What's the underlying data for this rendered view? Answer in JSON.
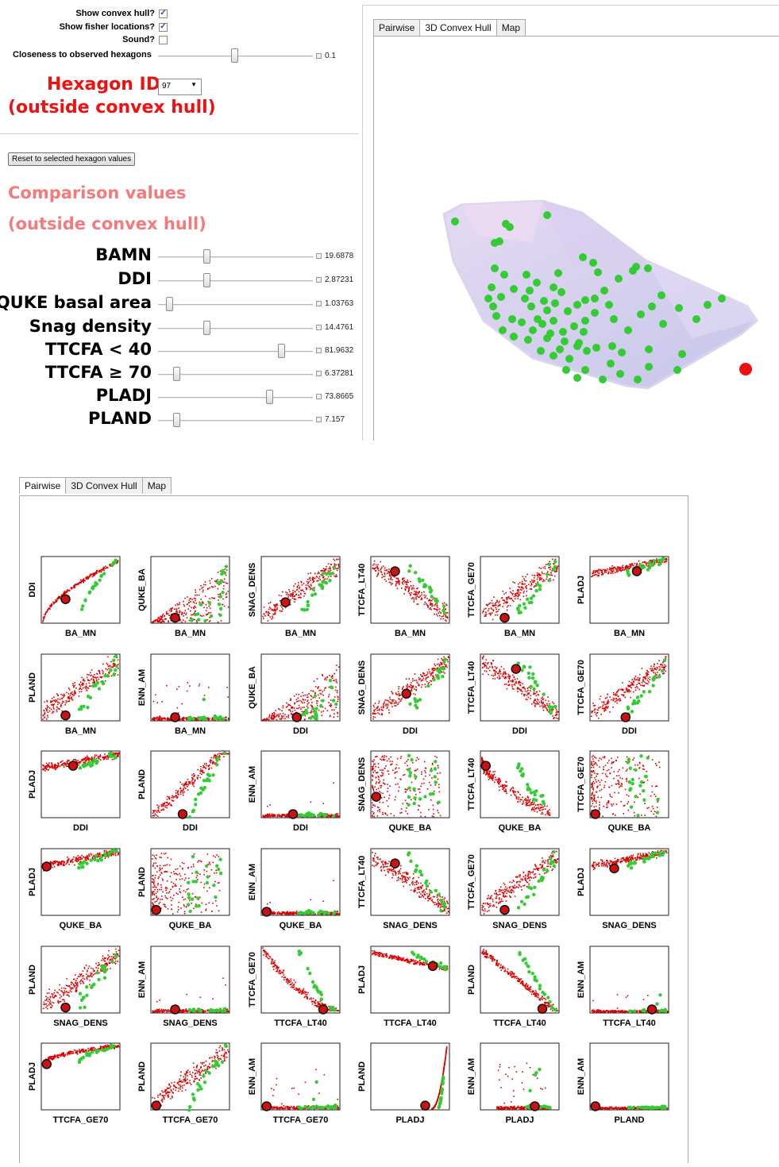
{
  "controls": {
    "show_convex_hull": {
      "label": "Show convex hull?",
      "checked": true
    },
    "show_fisher": {
      "label": "Show fisher locations?",
      "checked": true
    },
    "sound": {
      "label": "Sound?",
      "checked": false
    },
    "closeness": {
      "label": "Closeness to observed hexagons",
      "value": "0.1",
      "fraction": 0.49
    }
  },
  "hexagon": {
    "label": "Hexagon ID",
    "value": "97",
    "status": "(outside convex hull)"
  },
  "reset_button": "Reset to selected hexagon values",
  "comparison": {
    "title": "Comparison values",
    "status": "(outside convex hull)",
    "sliders": [
      {
        "label": "BAMN",
        "value": "19.6878",
        "fraction": 0.29
      },
      {
        "label": "DDI",
        "value": "2.87231",
        "fraction": 0.29
      },
      {
        "label": "QUKE basal area",
        "value": "1.03763",
        "fraction": 0.03
      },
      {
        "label": "Snag density",
        "value": "14.4761",
        "fraction": 0.29
      },
      {
        "label": "TTCFA < 40",
        "value": "81.9632",
        "fraction": 0.81
      },
      {
        "label": "TTCFA ≥ 70",
        "value": "6.37281",
        "fraction": 0.08
      },
      {
        "label": "PLADJ",
        "value": "73.8665",
        "fraction": 0.73
      },
      {
        "label": "PLAND",
        "value": "7.157",
        "fraction": 0.08
      }
    ]
  },
  "tabs": [
    {
      "label": "Pairwise"
    },
    {
      "label": "3D Convex Hull"
    },
    {
      "label": "Map"
    }
  ],
  "colors": {
    "hull": "#cdc6ea",
    "green_points": "#33cc33",
    "red_points": "#dd0000",
    "highlight": "#ee1111"
  },
  "chart_data": {
    "type": "scatter",
    "description_panels": [
      {
        "x": "BA_MN",
        "y": "DDI"
      },
      {
        "x": "BA_MN",
        "y": "QUKE_BA"
      },
      {
        "x": "BA_MN",
        "y": "SNAG_DENS"
      },
      {
        "x": "BA_MN",
        "y": "TTCFA_LT40"
      },
      {
        "x": "BA_MN",
        "y": "TTCFA_GE70"
      },
      {
        "x": "BA_MN",
        "y": "PLADJ"
      },
      {
        "x": "BA_MN",
        "y": "PLAND"
      },
      {
        "x": "BA_MN",
        "y": "ENN_AM"
      },
      {
        "x": "DDI",
        "y": "QUKE_BA"
      },
      {
        "x": "DDI",
        "y": "SNAG_DENS"
      },
      {
        "x": "DDI",
        "y": "TTCFA_LT40"
      },
      {
        "x": "DDI",
        "y": "TTCFA_GE70"
      },
      {
        "x": "DDI",
        "y": "PLADJ"
      },
      {
        "x": "DDI",
        "y": "PLAND"
      },
      {
        "x": "DDI",
        "y": "ENN_AM"
      },
      {
        "x": "QUKE_BA",
        "y": "SNAG_DENS"
      },
      {
        "x": "QUKE_BA",
        "y": "TTCFA_LT40"
      },
      {
        "x": "QUKE_BA",
        "y": "TTCFA_GE70"
      },
      {
        "x": "QUKE_BA",
        "y": "PLADJ"
      },
      {
        "x": "QUKE_BA",
        "y": "PLAND"
      },
      {
        "x": "QUKE_BA",
        "y": "ENN_AM"
      },
      {
        "x": "SNAG_DENS",
        "y": "TTCFA_LT40"
      },
      {
        "x": "SNAG_DENS",
        "y": "TTCFA_GE70"
      },
      {
        "x": "SNAG_DENS",
        "y": "PLADJ"
      },
      {
        "x": "SNAG_DENS",
        "y": "PLAND"
      },
      {
        "x": "SNAG_DENS",
        "y": "ENN_AM"
      },
      {
        "x": "TTCFA_LT40",
        "y": "TTCFA_GE70"
      },
      {
        "x": "TTCFA_LT40",
        "y": "PLADJ"
      },
      {
        "x": "TTCFA_LT40",
        "y": "PLAND"
      },
      {
        "x": "TTCFA_LT40",
        "y": "ENN_AM"
      },
      {
        "x": "TTCFA_GE70",
        "y": "PLADJ"
      },
      {
        "x": "TTCFA_GE70",
        "y": "PLAND"
      },
      {
        "x": "TTCFA_GE70",
        "y": "ENN_AM"
      },
      {
        "x": "PLADJ",
        "y": "PLAND"
      },
      {
        "x": "PLADJ",
        "y": "ENN_AM"
      },
      {
        "x": "PLAND",
        "y": "ENN_AM"
      }
    ]
  }
}
